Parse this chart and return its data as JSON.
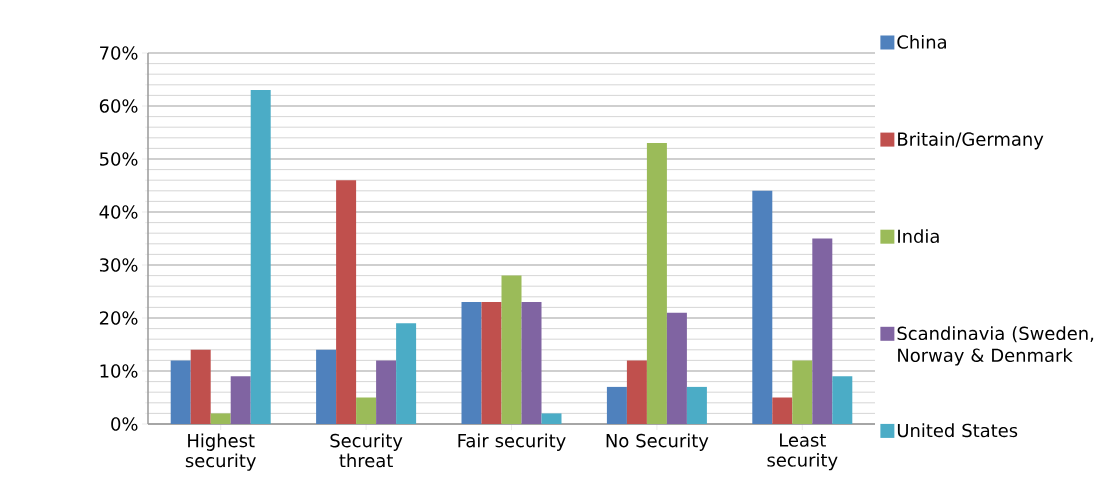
{
  "chart_data": {
    "type": "bar",
    "categories": [
      "Highest security",
      "Security threat",
      "Fair security",
      "No Security",
      "Least security"
    ],
    "series": [
      {
        "name": "China",
        "color": "#4f81bd",
        "values": [
          12,
          14,
          23,
          7,
          44
        ]
      },
      {
        "name": "Britain/Germany",
        "color": "#c0504d",
        "values": [
          14,
          46,
          23,
          12,
          5
        ]
      },
      {
        "name": "India",
        "color": "#9bbb59",
        "values": [
          2,
          5,
          28,
          53,
          12
        ]
      },
      {
        "name": "Scandinavia (Sweden, Norway & Denmark",
        "color": "#8064a2",
        "values": [
          9,
          12,
          23,
          21,
          35
        ]
      },
      {
        "name": "United States",
        "color": "#4bacc6",
        "values": [
          63,
          19,
          2,
          7,
          9
        ]
      }
    ],
    "ylim": [
      0,
      70
    ],
    "yticks": [
      {
        "value": 0,
        "label": "0%"
      },
      {
        "value": 10,
        "label": "10%"
      },
      {
        "value": 20,
        "label": "20%"
      },
      {
        "value": 30,
        "label": "30%"
      },
      {
        "value": 40,
        "label": "40%"
      },
      {
        "value": 50,
        "label": "50%"
      },
      {
        "value": 60,
        "label": "60%"
      },
      {
        "value": 70,
        "label": "70%"
      }
    ],
    "grid": "y",
    "legend": "right"
  }
}
